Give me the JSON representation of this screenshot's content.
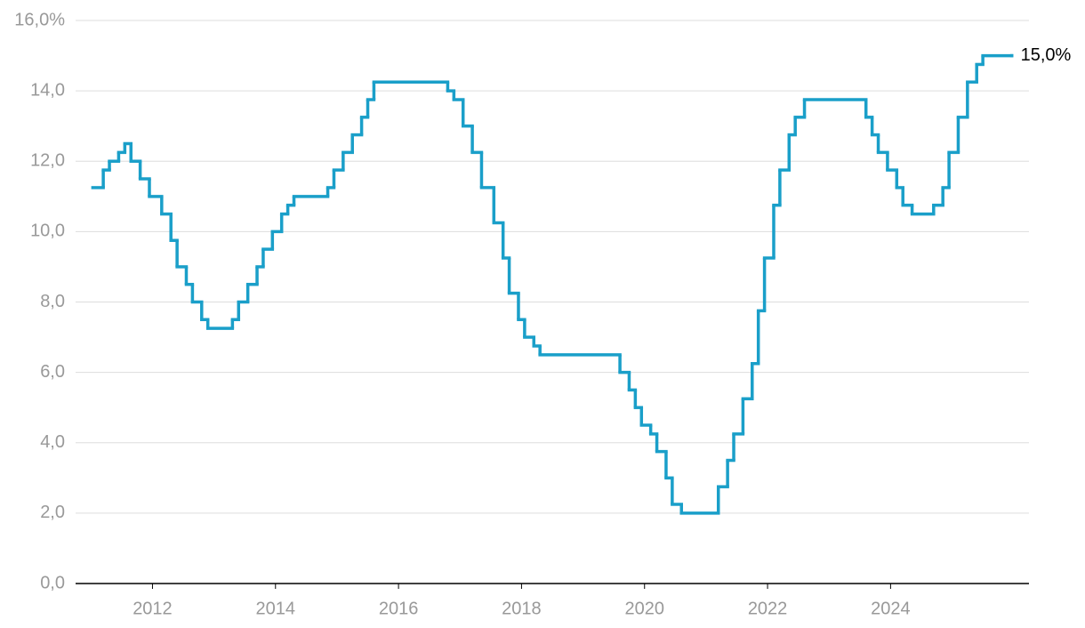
{
  "chart_data": {
    "type": "step-line",
    "x": [
      2011.03,
      2011.2,
      2011.3,
      2011.45,
      2011.55,
      2011.65,
      2011.8,
      2011.95,
      2012.15,
      2012.3,
      2012.4,
      2012.55,
      2012.65,
      2012.8,
      2012.9,
      2013.3,
      2013.4,
      2013.55,
      2013.7,
      2013.8,
      2013.95,
      2014.1,
      2014.2,
      2014.3,
      2014.85,
      2014.95,
      2015.1,
      2015.25,
      2015.4,
      2015.5,
      2015.6,
      2016.8,
      2016.9,
      2017.05,
      2017.2,
      2017.35,
      2017.55,
      2017.7,
      2017.8,
      2017.95,
      2018.05,
      2018.2,
      2018.3,
      2019.6,
      2019.75,
      2019.85,
      2019.95,
      2020.1,
      2020.2,
      2020.35,
      2020.45,
      2020.6,
      2021.2,
      2021.35,
      2021.45,
      2021.6,
      2021.75,
      2021.85,
      2021.95,
      2022.1,
      2022.2,
      2022.35,
      2022.45,
      2022.6,
      2023.6,
      2023.7,
      2023.8,
      2023.95,
      2024.1,
      2024.2,
      2024.35,
      2024.7,
      2024.85,
      2024.95,
      2025.1,
      2025.25,
      2025.4,
      2025.5,
      2025.97
    ],
    "series": [
      {
        "color": "#1a9fc9",
        "values": [
          11.25,
          11.75,
          12.0,
          12.25,
          12.5,
          12.0,
          11.5,
          11.0,
          10.5,
          9.75,
          9.0,
          8.5,
          8.0,
          7.5,
          7.25,
          7.5,
          8.0,
          8.5,
          9.0,
          9.5,
          10.0,
          10.5,
          10.75,
          11.0,
          11.25,
          11.75,
          12.25,
          12.75,
          13.25,
          13.75,
          14.25,
          14.0,
          13.75,
          13.0,
          12.25,
          11.25,
          10.25,
          9.25,
          8.25,
          7.5,
          7.0,
          6.75,
          6.5,
          6.0,
          5.5,
          5.0,
          4.5,
          4.25,
          3.75,
          3.0,
          2.25,
          2.0,
          2.75,
          3.5,
          4.25,
          5.25,
          6.25,
          7.75,
          9.25,
          10.75,
          11.75,
          12.75,
          13.25,
          13.75,
          13.25,
          12.75,
          12.25,
          11.75,
          11.25,
          10.75,
          10.5,
          10.75,
          11.25,
          12.25,
          13.25,
          14.25,
          14.75,
          15.0,
          15.0
        ],
        "value_labels": [
          null,
          null,
          null,
          null,
          null,
          null,
          null,
          null,
          null,
          null,
          null,
          null,
          null,
          null,
          null,
          null,
          null,
          null,
          null,
          null,
          null,
          null,
          null,
          null,
          null,
          null,
          null,
          null,
          null,
          null,
          null,
          null,
          null,
          null,
          null,
          null,
          null,
          null,
          null,
          null,
          null,
          null,
          null,
          null,
          null,
          null,
          null,
          null,
          null,
          null,
          null,
          null,
          null,
          null,
          null,
          null,
          null,
          null,
          null,
          null,
          null,
          null,
          null,
          null,
          null,
          null,
          null,
          null,
          null,
          null,
          null,
          null,
          null,
          null,
          null,
          null,
          null,
          null,
          "15,0%"
        ]
      }
    ],
    "xlim": [
      2010.75,
      2026.25
    ],
    "xticks": [
      2012,
      2014,
      2016,
      2018,
      2020,
      2022,
      2024
    ],
    "ylim": [
      0,
      16
    ],
    "yticks": [
      {
        "value": 0,
        "label": "0,0"
      },
      {
        "value": 2,
        "label": "2,0"
      },
      {
        "value": 4,
        "label": "4,0"
      },
      {
        "value": 6,
        "label": "6,0"
      },
      {
        "value": 8,
        "label": "8,0"
      },
      {
        "value": 10,
        "label": "10,0"
      },
      {
        "value": 12,
        "label": "12,0"
      },
      {
        "value": 14,
        "label": "14,0"
      },
      {
        "value": 16,
        "label": "16,0%"
      }
    ],
    "grid": true
  }
}
